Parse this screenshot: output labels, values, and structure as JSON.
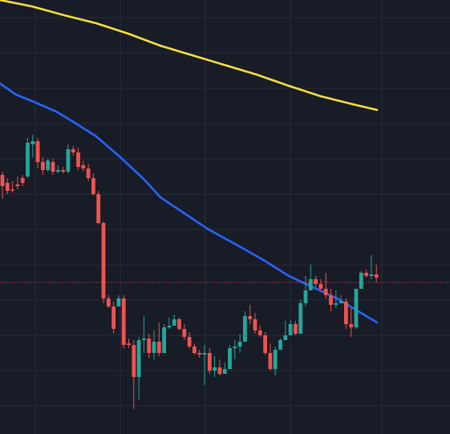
{
  "chart_data": {
    "type": "candlestick",
    "grid": true,
    "xlim": [
      0,
      112
    ],
    "ylim": [
      0,
      541
    ],
    "y_inverted": true,
    "price_line": 352,
    "colors": {
      "background": "#181c27",
      "grid": "#262b38",
      "up": "#26a69a",
      "down": "#ef5350",
      "price_line": "#ef5350",
      "ma_slow": "#f7e03c",
      "ma_fast": "#2962ff"
    },
    "moving_averages": [
      {
        "color": "#f7e03c",
        "points": [
          [
            0,
            0
          ],
          [
            8,
            8
          ],
          [
            16,
            19
          ],
          [
            24,
            29
          ],
          [
            32,
            42
          ],
          [
            40,
            57
          ],
          [
            48,
            69
          ],
          [
            56,
            81
          ],
          [
            64,
            93
          ],
          [
            72,
            107
          ],
          [
            80,
            120
          ],
          [
            88,
            130
          ],
          [
            94,
            137
          ]
        ]
      },
      {
        "color": "#2962ff",
        "points": [
          [
            0,
            104
          ],
          [
            4,
            118
          ],
          [
            8,
            126
          ],
          [
            14,
            139
          ],
          [
            18,
            151
          ],
          [
            24,
            170
          ],
          [
            30,
            196
          ],
          [
            36,
            224
          ],
          [
            40,
            246
          ],
          [
            46,
            266
          ],
          [
            52,
            286
          ],
          [
            60,
            308
          ],
          [
            66,
            325
          ],
          [
            72,
            344
          ],
          [
            78,
            358
          ],
          [
            84,
            372
          ],
          [
            90,
            390
          ],
          [
            94,
            402
          ]
        ]
      }
    ],
    "candles": [
      [
        0,
        218,
        214,
        232,
        248
      ],
      [
        1,
        228,
        222,
        238,
        242
      ],
      [
        2,
        236,
        226,
        236,
        240
      ],
      [
        3,
        230,
        220,
        232,
        236
      ],
      [
        4,
        222,
        218,
        228,
        232
      ],
      [
        5,
        220,
        172,
        178,
        222
      ],
      [
        6,
        180,
        168,
        176,
        196
      ],
      [
        7,
        176,
        172,
        202,
        210
      ],
      [
        8,
        202,
        196,
        212,
        218
      ],
      [
        9,
        212,
        198,
        200,
        214
      ],
      [
        10,
        202,
        198,
        214,
        218
      ],
      [
        11,
        214,
        206,
        212,
        216
      ],
      [
        12,
        212,
        208,
        214,
        216
      ],
      [
        13,
        214,
        180,
        186,
        216
      ],
      [
        14,
        186,
        182,
        190,
        194
      ],
      [
        15,
        190,
        184,
        208,
        212
      ],
      [
        16,
        206,
        200,
        210,
        214
      ],
      [
        17,
        210,
        204,
        222,
        226
      ],
      [
        18,
        222,
        216,
        242,
        244
      ],
      [
        19,
        242,
        238,
        278,
        280
      ],
      [
        20,
        278,
        276,
        372,
        378
      ],
      [
        21,
        372,
        368,
        382,
        384
      ],
      [
        22,
        382,
        376,
        410,
        416
      ],
      [
        23,
        382,
        368,
        372,
        376
      ],
      [
        24,
        372,
        368,
        430,
        434
      ],
      [
        25,
        428,
        422,
        430,
        434
      ],
      [
        26,
        430,
        424,
        470,
        510
      ],
      [
        27,
        470,
        420,
        424,
        498
      ],
      [
        28,
        424,
        394,
        422,
        440
      ],
      [
        29,
        422,
        416,
        440,
        446
      ],
      [
        30,
        440,
        412,
        426,
        448
      ],
      [
        31,
        426,
        402,
        440,
        444
      ],
      [
        32,
        440,
        404,
        408,
        412
      ],
      [
        33,
        408,
        396,
        406,
        410
      ],
      [
        34,
        406,
        392,
        398,
        402
      ],
      [
        35,
        398,
        396,
        410,
        412
      ],
      [
        36,
        410,
        404,
        420,
        424
      ],
      [
        37,
        420,
        414,
        432,
        434
      ],
      [
        38,
        432,
        428,
        440,
        442
      ],
      [
        39,
        440,
        436,
        442,
        446
      ],
      [
        40,
        442,
        430,
        440,
        480
      ],
      [
        41,
        440,
        434,
        462,
        466
      ],
      [
        42,
        462,
        444,
        458,
        470
      ],
      [
        43,
        458,
        448,
        466,
        468
      ],
      [
        44,
        466,
        452,
        460,
        462
      ],
      [
        45,
        460,
        430,
        434,
        438
      ],
      [
        46,
        434,
        424,
        432,
        448
      ],
      [
        47,
        432,
        416,
        426,
        440
      ],
      [
        48,
        426,
        388,
        394,
        396
      ],
      [
        49,
        394,
        380,
        398,
        404
      ],
      [
        50,
        398,
        390,
        412,
        416
      ],
      [
        51,
        412,
        406,
        418,
        420
      ],
      [
        52,
        418,
        414,
        440,
        442
      ],
      [
        53,
        440,
        428,
        460,
        462
      ],
      [
        54,
        460,
        432,
        436,
        468
      ],
      [
        55,
        436,
        422,
        424,
        426
      ],
      [
        56,
        424,
        400,
        418,
        422
      ],
      [
        57,
        418,
        398,
        404,
        406
      ],
      [
        58,
        404,
        400,
        416,
        418
      ],
      [
        59,
        416,
        374,
        378,
        380
      ],
      [
        60,
        378,
        344,
        362,
        382
      ],
      [
        61,
        362,
        330,
        348,
        350
      ],
      [
        62,
        348,
        344,
        354,
        358
      ],
      [
        63,
        354,
        348,
        360,
        362
      ],
      [
        64,
        360,
        340,
        368,
        372
      ],
      [
        65,
        368,
        360,
        380,
        388
      ],
      [
        66,
        380,
        362,
        378,
        384
      ],
      [
        67,
        378,
        368,
        376,
        378
      ],
      [
        68,
        376,
        372,
        404,
        410
      ],
      [
        69,
        404,
        384,
        408,
        420
      ],
      [
        70,
        408,
        362,
        360,
        410
      ],
      [
        71,
        360,
        338,
        340,
        346
      ],
      [
        72,
        340,
        336,
        344,
        346
      ],
      [
        73,
        344,
        318,
        342,
        348
      ],
      [
        74,
        342,
        330,
        346,
        352
      ]
    ]
  }
}
